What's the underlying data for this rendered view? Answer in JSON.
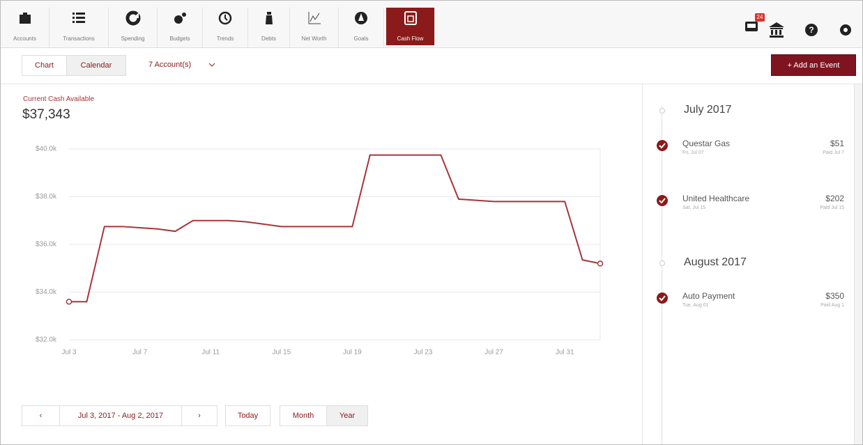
{
  "nav": {
    "items": [
      "Accounts",
      "Transactions",
      "Spending",
      "Budgets",
      "Trends",
      "Debts",
      "Net Worth",
      "Goals",
      "Cash Flow"
    ],
    "badge": "24"
  },
  "toolbar": {
    "tabs": [
      "Chart",
      "Calendar"
    ],
    "accounts": "7 Account(s)",
    "add_button": "+ Add an Event"
  },
  "summary": {
    "label": "Current Cash Available",
    "amount": "$37,343"
  },
  "chart_data": {
    "type": "line",
    "color": "#a8343a",
    "categories": [
      "Jul 3",
      null,
      null,
      null,
      "Jul 7",
      null,
      null,
      null,
      "Jul 11",
      null,
      null,
      null,
      "Jul 15",
      null,
      null,
      null,
      "Jul 19",
      null,
      null,
      null,
      "Jul 23",
      null,
      null,
      null,
      "Jul 27",
      null,
      null,
      null,
      "Jul 31",
      null,
      null
    ],
    "series": [
      {
        "name": "Cash Available",
        "color": "#a8343a",
        "values": [
          33600,
          33600,
          36750,
          36750,
          36700,
          36650,
          36550,
          37000,
          37000,
          37000,
          36950,
          36850,
          36750,
          36750,
          36750,
          36750,
          36750,
          39750,
          39750,
          39750,
          39750,
          39750,
          37900,
          37850,
          37800,
          37800,
          37800,
          37800,
          37800,
          35350,
          35200
        ]
      }
    ],
    "ylim": [
      32000,
      40000
    ],
    "yticks": [
      {
        "value": 32000,
        "label": "$32.0k"
      },
      {
        "value": 34000,
        "label": "$34.0k"
      },
      {
        "value": 36000,
        "label": "$36.0k"
      },
      {
        "value": 38000,
        "label": "$38.0k"
      },
      {
        "value": 40000,
        "label": "$40.0k"
      }
    ],
    "grid": true
  },
  "controls": {
    "prev": "‹",
    "range": "Jul 3, 2017 - Aug 2, 2017",
    "next": "›",
    "today": "Today",
    "views": [
      "Month",
      "Year"
    ]
  },
  "events": {
    "groups": [
      {
        "month": "July 2017",
        "items": [
          {
            "name": "Questar Gas",
            "date": "Fri, Jul 07",
            "amount": "$51",
            "status": "Paid Jul 7"
          },
          {
            "name": "United Healthcare",
            "date": "Sat, Jul 15",
            "amount": "$202",
            "status": "Paid Jul 15"
          }
        ]
      },
      {
        "month": "August 2017",
        "items": [
          {
            "name": "Auto Payment",
            "date": "Tue, Aug 01",
            "amount": "$350",
            "status": "Paid Aug 1"
          }
        ]
      }
    ]
  }
}
